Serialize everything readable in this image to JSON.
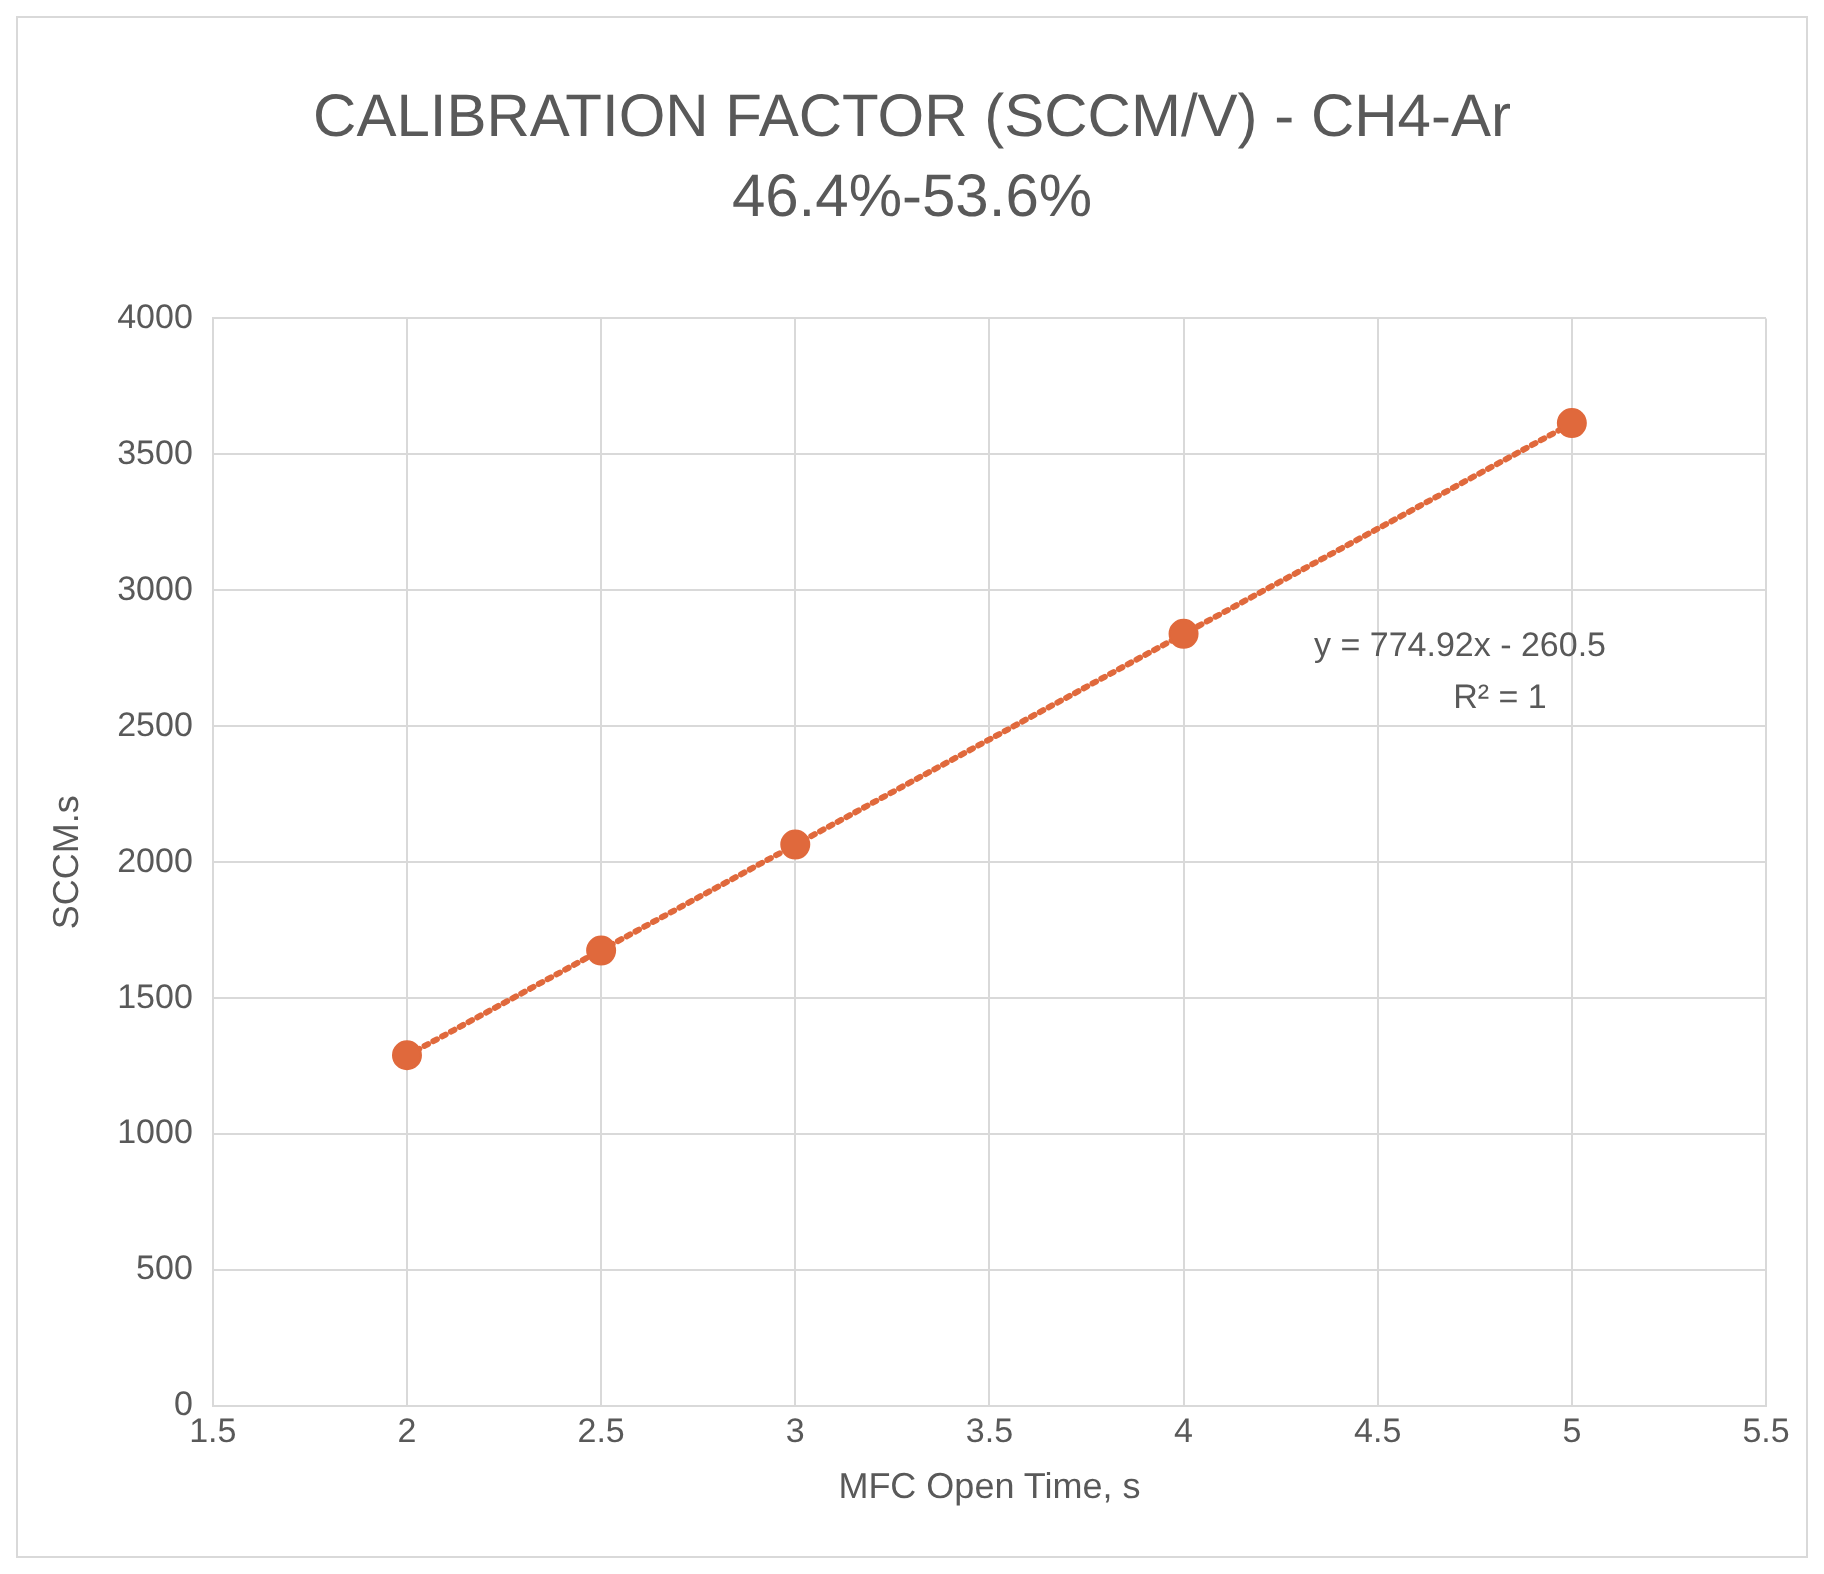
{
  "chart_data": {
    "type": "scatter",
    "title": "CALIBRATION FACTOR (SCCM/V) - CH4-Ar 46.4%-53.6%",
    "xlabel": "MFC Open Time, s",
    "ylabel": "SCCM.s",
    "x": [
      2,
      2.5,
      3,
      4,
      5
    ],
    "series": [
      {
        "color": "#e0693c",
        "marker": "circle",
        "values": [
          1290,
          1675,
          2065,
          2840,
          3615
        ]
      },
      {
        "type": "line",
        "color": "#e0693c",
        "x": [
          2,
          5
        ],
        "values": [
          1289,
          3614
        ],
        "line_style": "dotted"
      }
    ],
    "annotations": [
      "y = 774.92x - 260.5",
      "R² = 1"
    ],
    "xlim": [
      1.5,
      5.5
    ],
    "xticks": [
      1.5,
      2,
      2.5,
      3,
      3.5,
      4,
      4.5,
      5,
      5.5
    ],
    "ylim": [
      0,
      4000
    ],
    "yticks": [
      0,
      500,
      1000,
      1500,
      2000,
      2500,
      3000,
      3500,
      4000
    ],
    "grid": true,
    "legend": false
  }
}
